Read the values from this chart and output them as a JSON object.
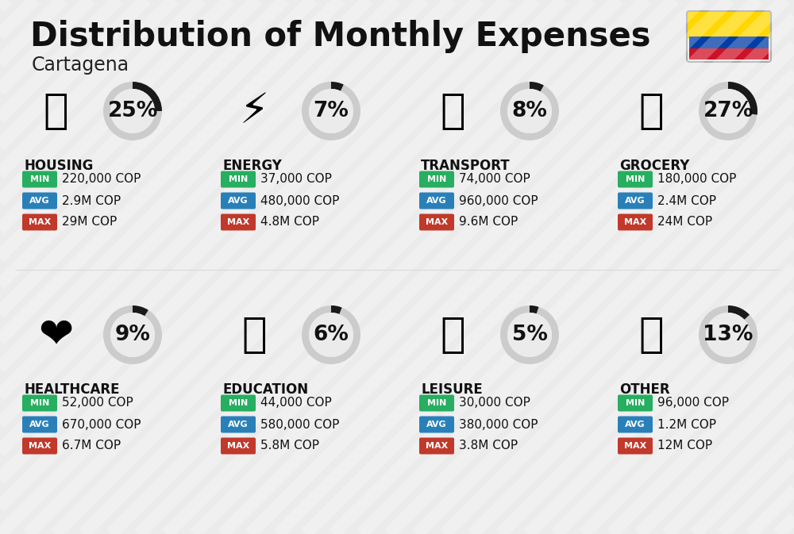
{
  "title": "Distribution of Monthly Expenses",
  "subtitle": "Cartagena",
  "background_color": "#ebebeb",
  "categories": [
    {
      "name": "HOUSING",
      "percent": 25,
      "min": "220,000 COP",
      "avg": "2.9M COP",
      "max": "29M COP",
      "row": 0,
      "col": 0
    },
    {
      "name": "ENERGY",
      "percent": 7,
      "min": "37,000 COP",
      "avg": "480,000 COP",
      "max": "4.8M COP",
      "row": 0,
      "col": 1
    },
    {
      "name": "TRANSPORT",
      "percent": 8,
      "min": "74,000 COP",
      "avg": "960,000 COP",
      "max": "9.6M COP",
      "row": 0,
      "col": 2
    },
    {
      "name": "GROCERY",
      "percent": 27,
      "min": "180,000 COP",
      "avg": "2.4M COP",
      "max": "24M COP",
      "row": 0,
      "col": 3
    },
    {
      "name": "HEALTHCARE",
      "percent": 9,
      "min": "52,000 COP",
      "avg": "670,000 COP",
      "max": "6.7M COP",
      "row": 1,
      "col": 0
    },
    {
      "name": "EDUCATION",
      "percent": 6,
      "min": "44,000 COP",
      "avg": "580,000 COP",
      "max": "5.8M COP",
      "row": 1,
      "col": 1
    },
    {
      "name": "LEISURE",
      "percent": 5,
      "min": "30,000 COP",
      "avg": "380,000 COP",
      "max": "3.8M COP",
      "row": 1,
      "col": 2
    },
    {
      "name": "OTHER",
      "percent": 13,
      "min": "96,000 COP",
      "avg": "1.2M COP",
      "max": "12M COP",
      "row": 1,
      "col": 3
    }
  ],
  "min_color": "#27ae60",
  "avg_color": "#2980b9",
  "max_color": "#c0392b",
  "arc_color_filled": "#1a1a1a",
  "arc_color_empty": "#cccccc",
  "title_fontsize": 30,
  "subtitle_fontsize": 17,
  "category_fontsize": 12,
  "value_fontsize": 11,
  "percent_fontsize": 19,
  "flag_yellow": "#FFD700",
  "flag_blue": "#003DA5",
  "flag_red": "#CE1126"
}
